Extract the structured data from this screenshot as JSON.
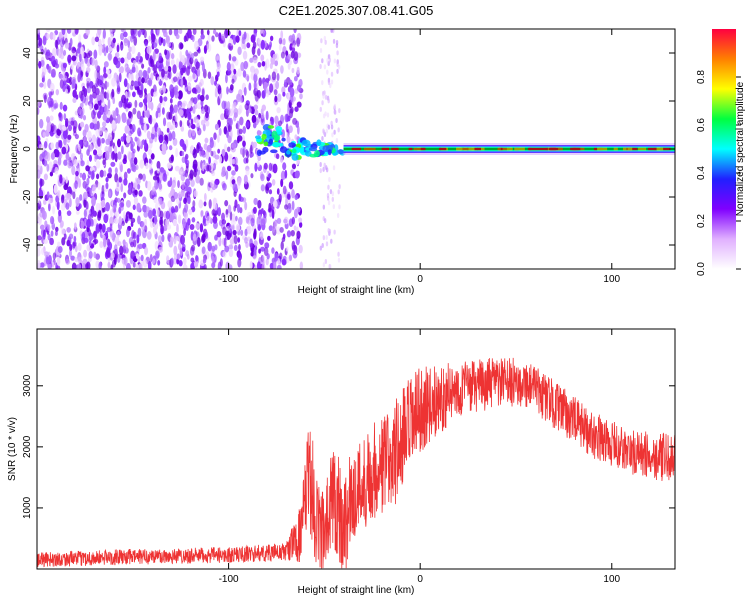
{
  "title": "C2E1.2025.307.08.41.G05",
  "chart_data": [
    {
      "type": "heatmap",
      "xlabel": "Height of straight line (km)",
      "ylabel": "Frequency (Hz)",
      "xlim": [
        -200,
        133
      ],
      "ylim": [
        -50,
        50
      ],
      "x_ticks": [
        -100,
        0,
        100
      ],
      "x_tick_labels": [
        "-100",
        "0",
        "100"
      ],
      "y_ticks": [
        -40,
        -20,
        0,
        20,
        40
      ],
      "y_tick_labels": [
        "-40",
        "-20",
        "0",
        "20",
        "40"
      ],
      "colorbar": {
        "label": "Normalized spectral amplitude",
        "range": [
          0,
          1
        ],
        "ticks": [
          0.0,
          0.2,
          0.4,
          0.6,
          0.8
        ],
        "tick_labels": [
          "0.0",
          "0.2",
          "0.4",
          "0.6",
          "0.8"
        ],
        "colors": [
          "#ffffff",
          "#e0b0ff",
          "#8000ff",
          "#2020ff",
          "#00ffff",
          "#00ff40",
          "#ffff00",
          "#ff8000",
          "#ff0040"
        ]
      },
      "description_regions": {
        "noise_x_range": [
          -200,
          -70
        ],
        "transition_x_range": [
          -85,
          -40
        ],
        "carrier_x_range": [
          -40,
          133
        ],
        "carrier_frequency": 0
      }
    },
    {
      "type": "line",
      "xlabel": "Height of straight line (km)",
      "ylabel": "SNR (10 * v/v)",
      "xlim": [
        -200,
        133
      ],
      "ylim": [
        0,
        3930
      ],
      "x_ticks": [
        -100,
        0,
        100
      ],
      "x_tick_labels": [
        "-100",
        "0",
        "100"
      ],
      "y_ticks": [
        1000,
        2000,
        3000
      ],
      "y_tick_labels": [
        "1000",
        "2000",
        "3000"
      ],
      "color": "#ee3333",
      "envelope": [
        {
          "x": -200,
          "mean": 150,
          "spread": 120
        },
        {
          "x": -150,
          "mean": 200,
          "spread": 130
        },
        {
          "x": -100,
          "mean": 230,
          "spread": 130
        },
        {
          "x": -70,
          "mean": 280,
          "spread": 150
        },
        {
          "x": -62,
          "mean": 600,
          "spread": 500
        },
        {
          "x": -58,
          "mean": 1600,
          "spread": 900
        },
        {
          "x": -54,
          "mean": 800,
          "spread": 900
        },
        {
          "x": -50,
          "mean": 500,
          "spread": 700
        },
        {
          "x": -45,
          "mean": 1300,
          "spread": 1000
        },
        {
          "x": -40,
          "mean": 700,
          "spread": 900
        },
        {
          "x": -35,
          "mean": 1200,
          "spread": 800
        },
        {
          "x": -25,
          "mean": 1600,
          "spread": 800
        },
        {
          "x": -15,
          "mean": 1800,
          "spread": 900
        },
        {
          "x": -5,
          "mean": 2300,
          "spread": 900
        },
        {
          "x": 0,
          "mean": 2600,
          "spread": 700
        },
        {
          "x": 20,
          "mean": 2950,
          "spread": 450
        },
        {
          "x": 40,
          "mean": 3050,
          "spread": 420
        },
        {
          "x": 55,
          "mean": 3050,
          "spread": 400
        },
        {
          "x": 70,
          "mean": 2700,
          "spread": 400
        },
        {
          "x": 90,
          "mean": 2200,
          "spread": 380
        },
        {
          "x": 110,
          "mean": 1900,
          "spread": 380
        },
        {
          "x": 133,
          "mean": 1800,
          "spread": 400
        }
      ]
    }
  ]
}
